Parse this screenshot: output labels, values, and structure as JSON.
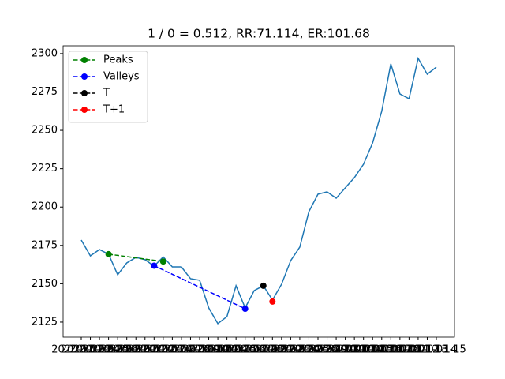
{
  "chart_data": {
    "type": "line",
    "title": "1 / 0 = 0.512, RR:71.114, ER:101.68",
    "categories": [
      "2020-11-23",
      "2020-11-24",
      "2020-11-25",
      "2020-11-26",
      "2020-11-27",
      "2020-11-30",
      "2020-12-01",
      "2020-12-02",
      "2020-12-03",
      "2020-12-04",
      "2020-12-07",
      "2020-12-08",
      "2020-12-09",
      "2020-12-10",
      "2020-12-11",
      "2020-12-14",
      "2020-12-15",
      "2020-12-16",
      "2020-12-17",
      "2020-12-18",
      "2020-12-21",
      "2020-12-22",
      "2020-12-23",
      "2020-12-24",
      "2020-12-25",
      "2020-12-28",
      "2020-12-29",
      "2020-12-30",
      "2020-12-31",
      "2021-01-01",
      "2021-01-04",
      "2021-01-05",
      "2021-01-06",
      "2021-01-07",
      "2021-01-08",
      "2021-01-11",
      "2021-01-12",
      "2021-01-13",
      "2021-01-14",
      "2021-01-15"
    ],
    "series": [
      {
        "color": "#1f77b4",
        "values": [
          2178.5,
          2168.2,
          2172.3,
          2169.3,
          2155.9,
          2163.6,
          2167.2,
          2165.7,
          2161.5,
          2167.5,
          2161,
          2161,
          2153.3,
          2152.3,
          2134.3,
          2124,
          2128.6,
          2148.7,
          2134.3,
          2145.6,
          2148.7,
          2139.4,
          2149.7,
          2165.1,
          2173.9,
          2197,
          2208.4,
          2209.9,
          2205.8,
          2212.5,
          2219.2,
          2227.9,
          2241.8,
          2262.4,
          2293.3,
          2273.7,
          2270.6,
          2296.9,
          2286.6,
          2291.2
        ]
      },
      {
        "name": "Peaks",
        "color": "green",
        "dashed": true,
        "x": [
          "2020-11-26",
          "2020-12-04"
        ],
        "values": [
          2169.3,
          2164.5
        ]
      },
      {
        "name": "Valleys",
        "color": "blue",
        "dashed": true,
        "x": [
          "2020-12-03",
          "2020-12-17"
        ],
        "values": [
          2161.8,
          2133.7
        ]
      },
      {
        "name": "T",
        "color": "black",
        "dashed": true,
        "x": [
          "2020-12-21"
        ],
        "values": [
          2148.7
        ]
      },
      {
        "name": "T+1",
        "color": "red",
        "dashed": true,
        "x": [
          "2020-12-22"
        ],
        "values": [
          2138.4
        ]
      }
    ],
    "ylim": [
      2115.2,
      2305.1
    ],
    "yticks": [
      2125,
      2150,
      2175,
      2200,
      2225,
      2250,
      2275,
      2300
    ],
    "legend": "upper left"
  }
}
